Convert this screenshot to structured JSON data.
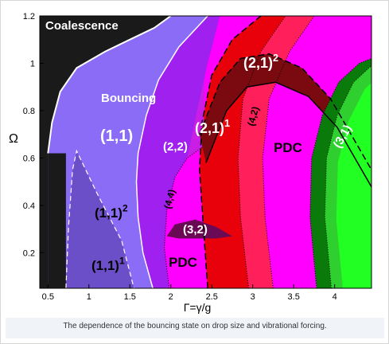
{
  "caption": "The dependence of the bouncing state on drop size and vibrational forcing.",
  "chart_data": {
    "type": "area",
    "title": "",
    "xlabel": "Γ=γ/g",
    "ylabel": "Ω",
    "xlim": [
      0.4,
      4.45
    ],
    "ylim": [
      0.05,
      1.2
    ],
    "x_ticks": [
      "0.5",
      "1",
      "1.5",
      "2",
      "2.5",
      "3",
      "3.5",
      "4"
    ],
    "x_tick_values": [
      0.5,
      1,
      1.5,
      2,
      2.5,
      3,
      3.5,
      4
    ],
    "y_ticks": [
      "0.2",
      "0.4",
      "0.6",
      "0.8",
      "1",
      "1.2"
    ],
    "y_tick_values": [
      0.2,
      0.4,
      0.6,
      0.8,
      1.0,
      1.2
    ],
    "grid": false,
    "legend": "none",
    "colors": {
      "coalescence": "#1a1a1a",
      "bouncing": "#8b6cf7",
      "bouncing_11_sub": "#6b4fc9",
      "mode_22": "#a020f0",
      "mode_44": "#c81ee6",
      "pdc": "#ff00ff",
      "mode_21": "#e8000b",
      "mode_42": "#ff1f5a",
      "mode_21_sq": "#7a0a10",
      "mode_32": "#6a0a55",
      "mode_31": "#0a7a0a",
      "mode_31_inner": "#2fcf2f",
      "pdc_green": "#22ff22"
    },
    "regions": [
      {
        "label": "Coalescence",
        "superscript": ""
      },
      {
        "label": "Bouncing",
        "superscript": ""
      },
      {
        "label": "(1,1)",
        "superscript": ""
      },
      {
        "label": "(1,1)",
        "superscript": "2"
      },
      {
        "label": "(1,1)",
        "superscript": "1"
      },
      {
        "label": "(2,2)",
        "superscript": ""
      },
      {
        "label": "(4,4)",
        "superscript": ""
      },
      {
        "label": "(3,2)",
        "superscript": ""
      },
      {
        "label": "PDC",
        "superscript": ""
      },
      {
        "label": "(2,1)",
        "superscript": "1"
      },
      {
        "label": "(2,1)",
        "superscript": "2"
      },
      {
        "label": "(4,2)",
        "superscript": ""
      },
      {
        "label": "PDC",
        "superscript": ""
      },
      {
        "label": "(3,1)",
        "superscript": ""
      }
    ],
    "boundaries": {
      "coalescence": [
        [
          0.5,
          0.62
        ],
        [
          0.55,
          0.75
        ],
        [
          0.65,
          0.88
        ],
        [
          0.85,
          0.98
        ],
        [
          1.2,
          1.05
        ],
        [
          1.5,
          1.1
        ],
        [
          1.8,
          1.15
        ],
        [
          2.0,
          1.2
        ]
      ],
      "bouncing_right": [
        [
          1.78,
          0.05
        ],
        [
          1.66,
          0.2
        ],
        [
          1.6,
          0.35
        ],
        [
          1.58,
          0.5
        ],
        [
          1.6,
          0.62
        ],
        [
          1.7,
          0.78
        ],
        [
          1.85,
          0.93
        ],
        [
          2.1,
          1.07
        ],
        [
          2.45,
          1.2
        ]
      ],
      "mode_11_sub": [
        [
          0.72,
          0.05
        ],
        [
          0.75,
          0.3
        ],
        [
          0.8,
          0.55
        ],
        [
          0.85,
          0.63
        ],
        [
          1.1,
          0.45
        ],
        [
          1.4,
          0.25
        ],
        [
          1.55,
          0.05
        ]
      ],
      "mode_44_left": [
        [
          1.98,
          0.05
        ],
        [
          1.92,
          0.22
        ],
        [
          1.95,
          0.38
        ],
        [
          2.05,
          0.52
        ],
        [
          2.2,
          0.6
        ],
        [
          2.4,
          0.65
        ]
      ],
      "mode_21_left": [
        [
          2.45,
          0.05
        ],
        [
          2.4,
          0.3
        ],
        [
          2.35,
          0.55
        ],
        [
          2.38,
          0.75
        ],
        [
          2.5,
          0.95
        ],
        [
          2.75,
          1.1
        ],
        [
          3.1,
          1.2
        ]
      ],
      "mode_21_right": [
        [
          2.95,
          0.05
        ],
        [
          2.85,
          0.35
        ],
        [
          2.82,
          0.6
        ],
        [
          2.88,
          0.85
        ],
        [
          3.1,
          1.05
        ],
        [
          3.4,
          1.2
        ]
      ],
      "mode_42_right": [
        [
          3.25,
          0.05
        ],
        [
          3.15,
          0.35
        ],
        [
          3.12,
          0.6
        ],
        [
          3.2,
          0.85
        ],
        [
          3.45,
          1.05
        ],
        [
          3.75,
          1.2
        ]
      ],
      "mode_21_sq_band": [
        [
          2.35,
          0.7
        ],
        [
          2.6,
          0.92
        ],
        [
          2.85,
          1.02
        ],
        [
          3.2,
          1.04
        ],
        [
          3.6,
          0.98
        ],
        [
          3.95,
          0.85
        ],
        [
          4.2,
          0.7
        ],
        [
          4.45,
          0.55
        ]
      ],
      "mode_31_left": [
        [
          3.78,
          0.05
        ],
        [
          3.7,
          0.35
        ],
        [
          3.72,
          0.6
        ],
        [
          3.85,
          0.78
        ],
        [
          4.05,
          0.92
        ],
        [
          4.3,
          1.0
        ],
        [
          4.45,
          1.02
        ]
      ],
      "mode_32_patch": [
        [
          1.95,
          0.27
        ],
        [
          2.05,
          0.32
        ],
        [
          2.3,
          0.34
        ],
        [
          2.55,
          0.31
        ],
        [
          2.75,
          0.27
        ],
        [
          2.55,
          0.26
        ],
        [
          2.1,
          0.26
        ]
      ]
    }
  }
}
